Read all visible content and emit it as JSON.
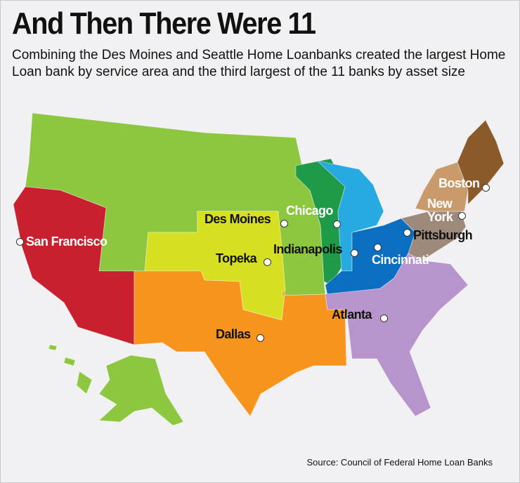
{
  "header": {
    "title": "And Then There Were 11",
    "subtitle": "Combining the Des Moines and Seattle Home Loanbanks created the largest Home Loan bank by service area and the third largest of the 11 banks by asset size"
  },
  "map": {
    "cities": [
      {
        "label": "Des Moines"
      },
      {
        "label": "Chicago"
      },
      {
        "label": "San Francisco"
      },
      {
        "label": "Topeka"
      },
      {
        "label": "Indianapolis"
      },
      {
        "label": "Cincinnati"
      },
      {
        "label": "Pittsburgh"
      },
      {
        "label": "Boston"
      },
      {
        "label": "New York"
      },
      {
        "label": "Atlanta"
      },
      {
        "label": "Dallas"
      }
    ]
  },
  "footer": {
    "source": "Source: Council of Federal Home Loan Banks"
  }
}
